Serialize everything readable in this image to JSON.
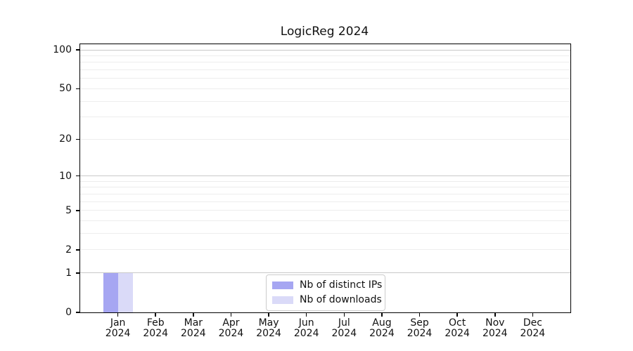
{
  "chart_data": {
    "type": "bar",
    "title": "LogicReg 2024",
    "categories": [
      "Jan",
      "Feb",
      "Mar",
      "Apr",
      "May",
      "Jun",
      "Jul",
      "Aug",
      "Sep",
      "Oct",
      "Nov",
      "Dec"
    ],
    "x_year_label": "2024",
    "series": [
      {
        "name": "Nb of distinct IPs",
        "color": "#a6a6f2",
        "values": [
          1,
          0,
          0,
          0,
          0,
          0,
          0,
          0,
          0,
          0,
          0,
          0
        ]
      },
      {
        "name": "Nb of downloads",
        "color": "#dadaf8",
        "values": [
          1,
          0,
          0,
          0,
          0,
          0,
          0,
          0,
          0,
          0,
          0,
          0
        ]
      }
    ],
    "yscale": "log1p",
    "ylim": [
      0,
      110
    ],
    "y_tick_values": [
      100,
      50,
      20,
      10,
      5,
      2,
      1,
      0
    ],
    "y_major_grid_values": [
      1,
      10,
      100
    ],
    "y_minor_grid_values": [
      2,
      3,
      4,
      5,
      6,
      7,
      8,
      9,
      20,
      30,
      40,
      50,
      60,
      70,
      80,
      90
    ],
    "legend_position": "lower center",
    "grid": true,
    "colors": {
      "major_grid": "#c9c9c9",
      "minor_grid": "#ededed",
      "axis": "#000000",
      "text": "#111111",
      "background": "#ffffff"
    }
  }
}
